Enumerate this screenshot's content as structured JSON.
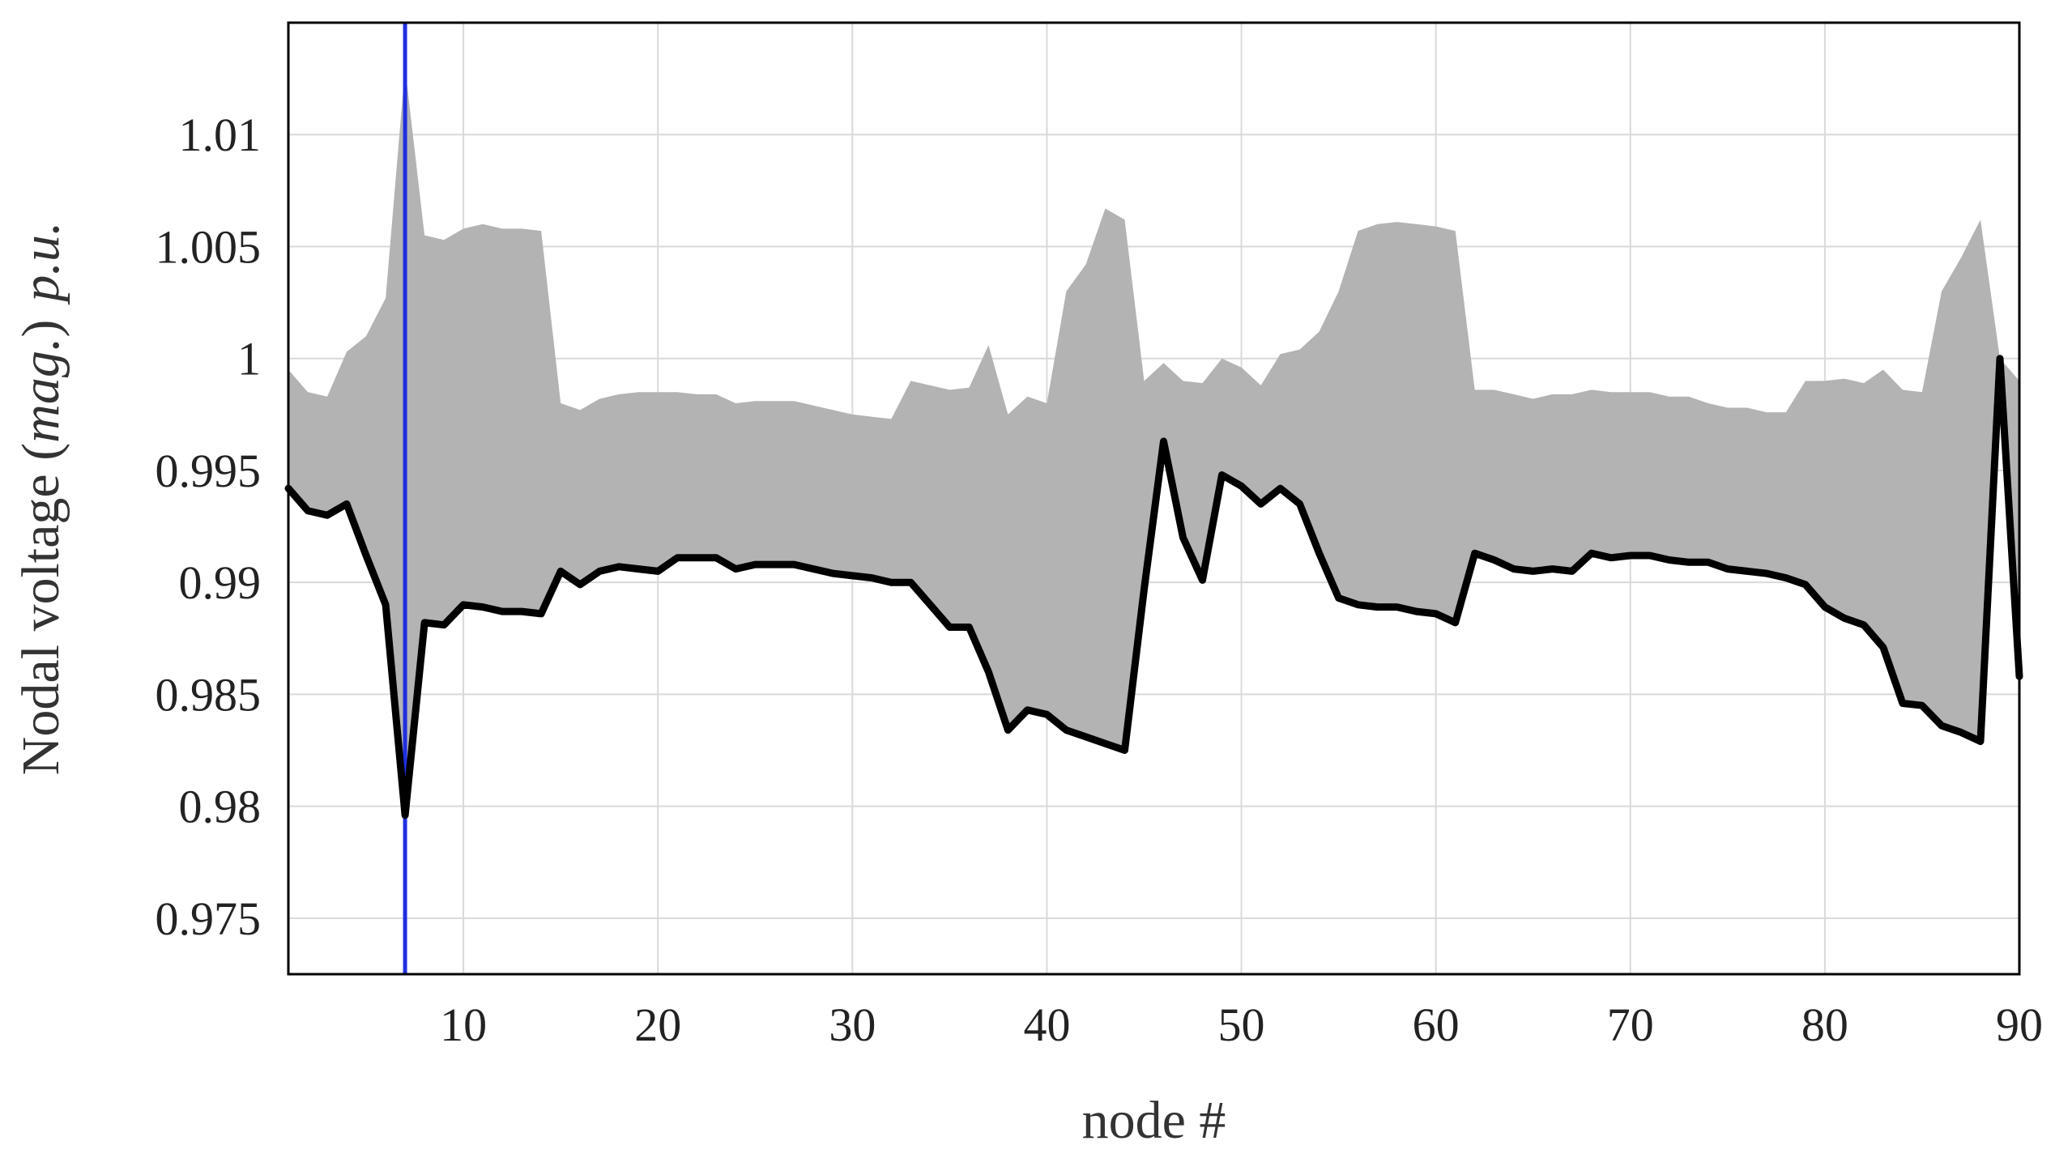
{
  "chart_data": {
    "type": "area",
    "xlabel": "node #",
    "ylabel": {
      "prefix": "Nodal voltage (",
      "italic_mid": "mag.",
      "mid_close": ")",
      "italic_unit": "p.u."
    },
    "xlim": [
      1,
      90
    ],
    "ylim": [
      0.9725,
      1.015
    ],
    "xticks": [
      10,
      20,
      30,
      40,
      50,
      60,
      70,
      80,
      90
    ],
    "yticks": [
      0.975,
      0.98,
      0.985,
      0.99,
      0.995,
      1,
      1.005,
      1.01
    ],
    "ytick_labels": [
      "0.975",
      "0.98",
      "0.985",
      "0.99",
      "0.995",
      "1",
      "1.005",
      "1.01"
    ],
    "grid": true,
    "band_color": "#b3b3b3",
    "line_color": "#000000",
    "marker_color": "#1f2fe0",
    "marker_x": 7,
    "series": [
      {
        "role": "band-upper",
        "x": [
          1,
          2,
          3,
          4,
          5,
          6,
          7,
          8,
          9,
          10,
          11,
          12,
          13,
          14,
          15,
          16,
          17,
          18,
          19,
          20,
          21,
          22,
          23,
          24,
          25,
          26,
          27,
          28,
          29,
          30,
          31,
          32,
          33,
          34,
          35,
          36,
          37,
          38,
          39,
          40,
          41,
          42,
          43,
          44,
          45,
          46,
          47,
          48,
          49,
          50,
          51,
          52,
          53,
          54,
          55,
          56,
          57,
          58,
          59,
          60,
          61,
          62,
          63,
          64,
          65,
          66,
          67,
          68,
          69,
          70,
          71,
          72,
          73,
          74,
          75,
          76,
          77,
          78,
          79,
          80,
          81,
          82,
          83,
          84,
          85,
          86,
          87,
          88,
          89,
          90
        ],
        "values": [
          0.9995,
          0.9985,
          0.9983,
          1.0003,
          1.001,
          1.0027,
          1.013,
          1.0055,
          1.0053,
          1.0058,
          1.006,
          1.0058,
          1.0058,
          1.0057,
          0.998,
          0.9977,
          0.9982,
          0.9984,
          0.9985,
          0.9985,
          0.9985,
          0.9984,
          0.9984,
          0.998,
          0.9981,
          0.9981,
          0.9981,
          0.9979,
          0.9977,
          0.9975,
          0.9974,
          0.9973,
          0.999,
          0.9988,
          0.9986,
          0.9987,
          1.0006,
          0.9975,
          0.9983,
          0.998,
          1.003,
          1.0042,
          1.0067,
          1.0062,
          0.999,
          0.9998,
          0.999,
          0.9989,
          1.0,
          0.9996,
          0.9988,
          1.0002,
          1.0004,
          1.0012,
          1.003,
          1.0057,
          1.006,
          1.0061,
          1.006,
          1.0059,
          1.0057,
          0.9986,
          0.9986,
          0.9984,
          0.9982,
          0.9984,
          0.9984,
          0.9986,
          0.9985,
          0.9985,
          0.9985,
          0.9983,
          0.9983,
          0.998,
          0.9978,
          0.9978,
          0.9976,
          0.9976,
          0.999,
          0.999,
          0.9991,
          0.9989,
          0.9995,
          0.9986,
          0.9985,
          1.003,
          1.0045,
          1.0062,
          1.0,
          0.999
        ]
      },
      {
        "role": "nodal-voltage",
        "x": [
          1,
          2,
          3,
          4,
          5,
          6,
          7,
          8,
          9,
          10,
          11,
          12,
          13,
          14,
          15,
          16,
          17,
          18,
          19,
          20,
          21,
          22,
          23,
          24,
          25,
          26,
          27,
          28,
          29,
          30,
          31,
          32,
          33,
          34,
          35,
          36,
          37,
          38,
          39,
          40,
          41,
          42,
          43,
          44,
          45,
          46,
          47,
          48,
          49,
          50,
          51,
          52,
          53,
          54,
          55,
          56,
          57,
          58,
          59,
          60,
          61,
          62,
          63,
          64,
          65,
          66,
          67,
          68,
          69,
          70,
          71,
          72,
          73,
          74,
          75,
          76,
          77,
          78,
          79,
          80,
          81,
          82,
          83,
          84,
          85,
          86,
          87,
          88,
          89,
          90
        ],
        "values": [
          0.9942,
          0.9932,
          0.993,
          0.9935,
          0.9912,
          0.989,
          0.9796,
          0.9882,
          0.9881,
          0.989,
          0.9889,
          0.9887,
          0.9887,
          0.9886,
          0.9905,
          0.9899,
          0.9905,
          0.9907,
          0.9906,
          0.9905,
          0.9911,
          0.9911,
          0.9911,
          0.9906,
          0.9908,
          0.9908,
          0.9908,
          0.9906,
          0.9904,
          0.9903,
          0.9902,
          0.99,
          0.99,
          0.989,
          0.988,
          0.988,
          0.986,
          0.9834,
          0.9843,
          0.9841,
          0.9834,
          0.9831,
          0.9828,
          0.9825,
          0.9897,
          0.9963,
          0.992,
          0.9901,
          0.9948,
          0.9943,
          0.9935,
          0.9942,
          0.9935,
          0.9913,
          0.9893,
          0.989,
          0.9889,
          0.9889,
          0.9887,
          0.9886,
          0.9882,
          0.9913,
          0.991,
          0.9906,
          0.9905,
          0.9906,
          0.9905,
          0.9913,
          0.9911,
          0.9912,
          0.9912,
          0.991,
          0.9909,
          0.9909,
          0.9906,
          0.9905,
          0.9904,
          0.9902,
          0.9899,
          0.9889,
          0.9884,
          0.9881,
          0.9871,
          0.9846,
          0.9845,
          0.9836,
          0.9833,
          0.9829,
          1.0,
          0.9858
        ]
      }
    ]
  }
}
